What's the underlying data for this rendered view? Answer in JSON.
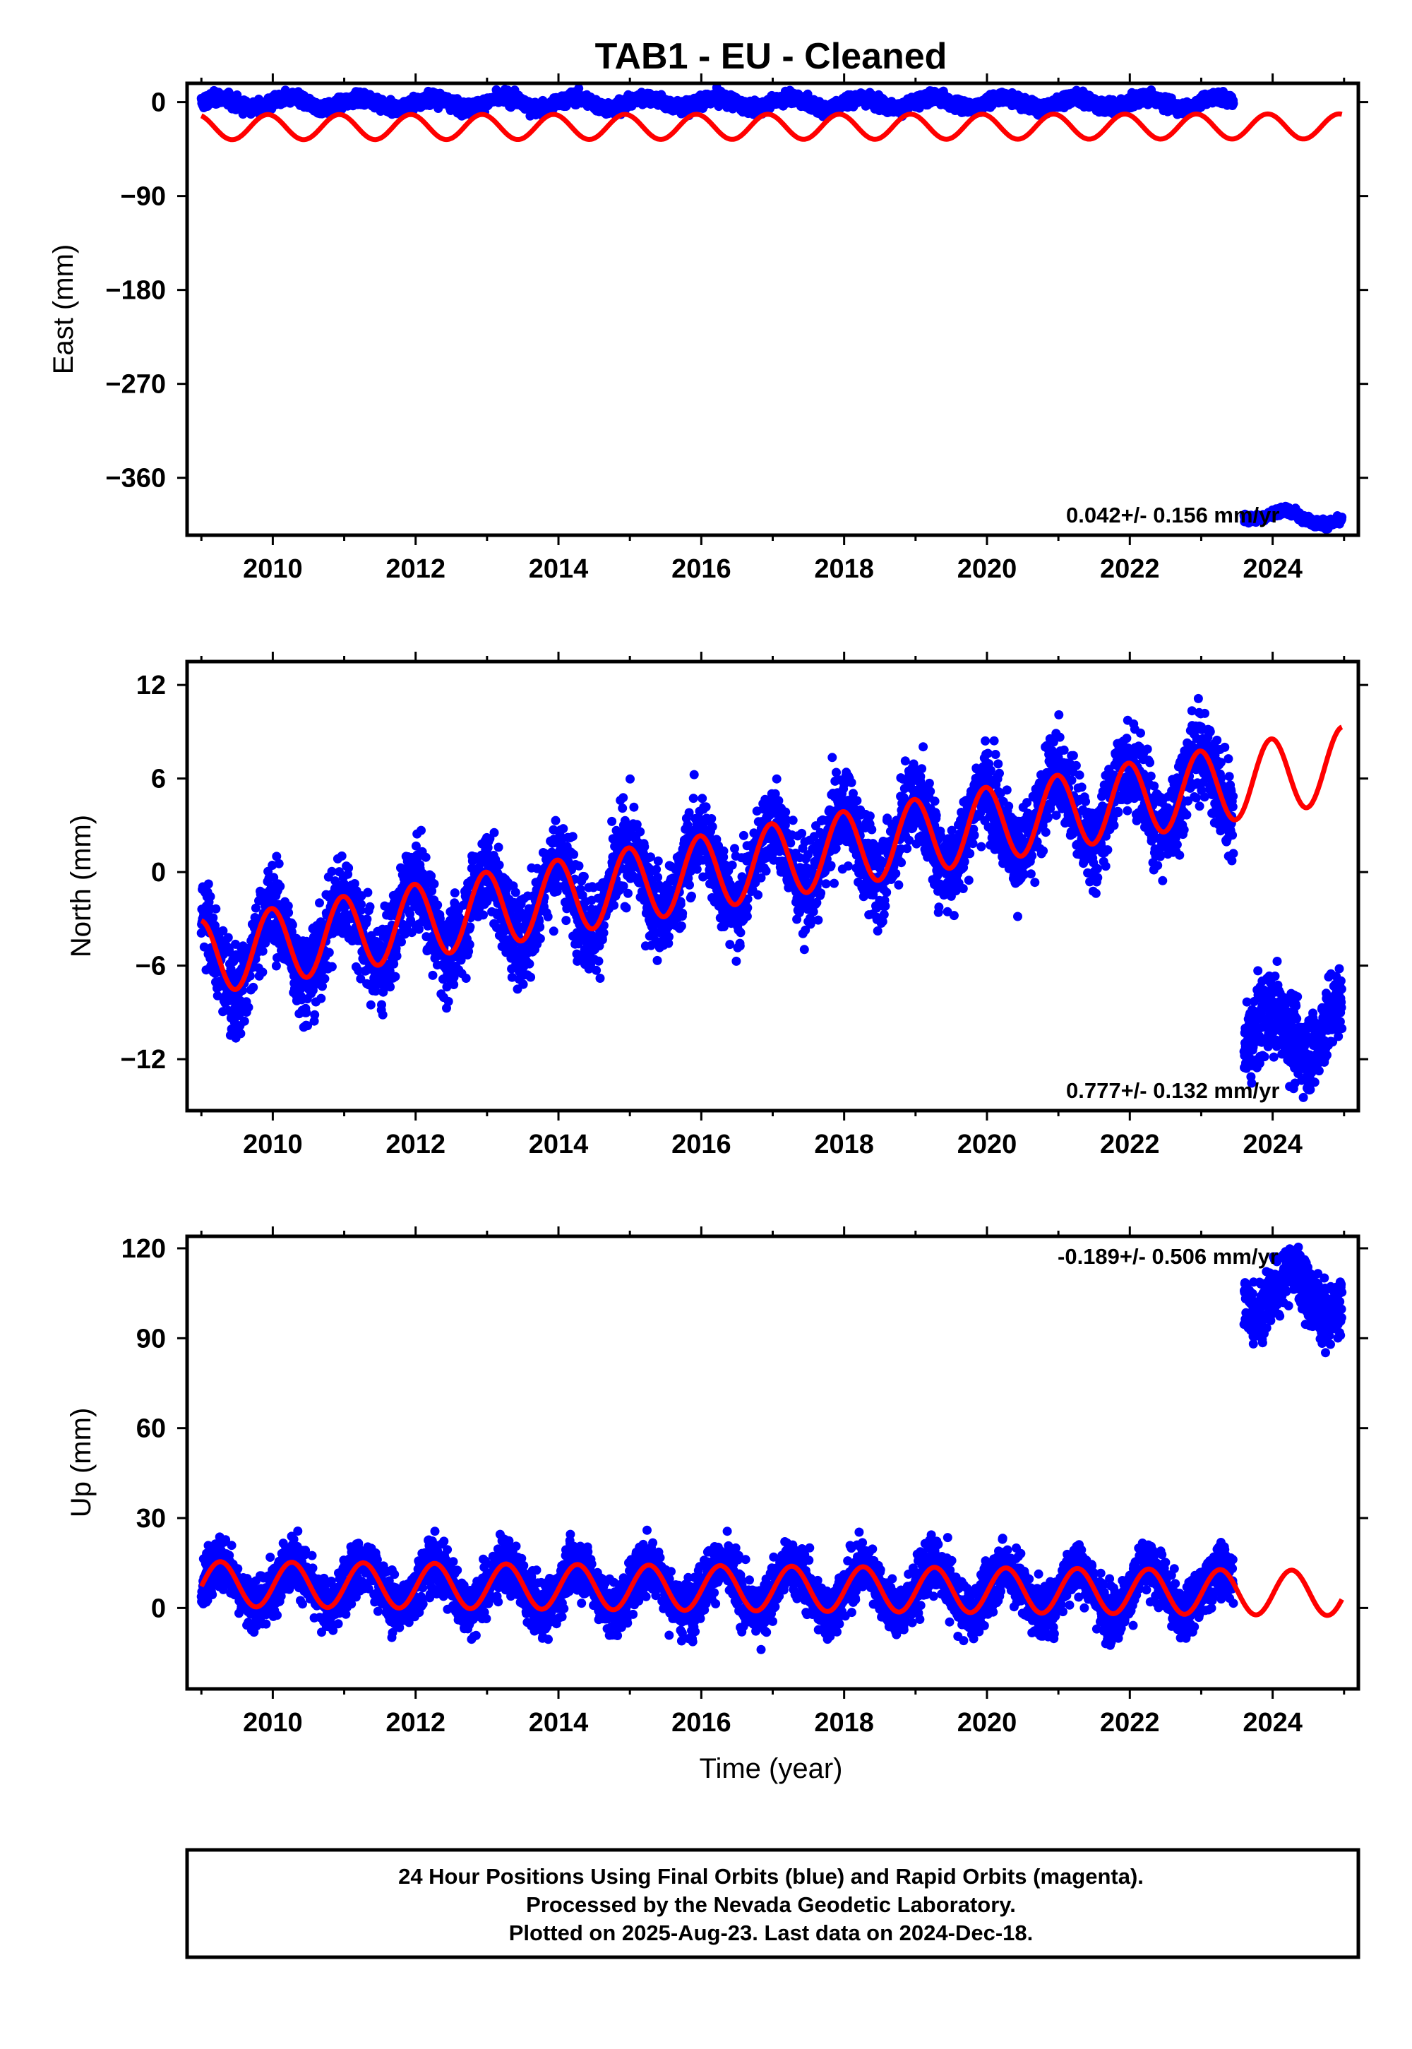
{
  "figure": {
    "title": "TAB1  - EU - Cleaned",
    "xlabel": "Time (year)",
    "footer": [
      "24 Hour Positions Using Final Orbits (blue) and Rapid Orbits (magenta).",
      "Processed by the Nevada Geodetic Laboratory.",
      "Plotted on 2025-Aug-23. Last data on 2024-Dec-18."
    ],
    "colors": {
      "data": "#0000ff",
      "model": "#ff0000",
      "frame": "#000000"
    }
  },
  "chart_data": [
    {
      "type": "scatter",
      "ylabel": "East (mm)",
      "rate": "0.042+/- 0.156 mm/yr",
      "xlim": [
        2008.8,
        2025.2
      ],
      "ylim": [
        -415,
        18
      ],
      "yticks": [
        0,
        -90,
        -180,
        -270,
        -360
      ],
      "xticks": [
        2010,
        2012,
        2014,
        2016,
        2018,
        2020,
        2022,
        2024
      ],
      "series": [
        {
          "kind": "data",
          "segments": [
            {
              "t0": 2009.0,
              "t1": 2023.45,
              "mean": -1,
              "trend": 0.04,
              "amp": 5,
              "phase": 0.1,
              "noise": 3
            },
            {
              "t0": 2023.6,
              "t1": 2024.97,
              "mean": -394,
              "trend": -5,
              "amp": 5,
              "phase": 0.4,
              "noise": 2
            }
          ]
        },
        {
          "kind": "model",
          "t0": 2009.0,
          "t1": 2024.97,
          "mean": -24,
          "trend": 0.042,
          "amp": 12,
          "phase": 2.0
        }
      ]
    },
    {
      "type": "scatter",
      "ylabel": "North (mm)",
      "rate": "0.777+/- 0.132 mm/yr",
      "xlim": [
        2008.8,
        2025.2
      ],
      "ylim": [
        -15.3,
        13.5
      ],
      "yticks": [
        12,
        6,
        0,
        -6,
        -12
      ],
      "xticks": [
        2010,
        2012,
        2014,
        2016,
        2018,
        2020,
        2022,
        2024
      ],
      "series": [
        {
          "kind": "data",
          "segments": [
            {
              "t0": 2009.0,
              "t1": 2023.45,
              "start": -5.5,
              "trend": 0.78,
              "amp": 2.4,
              "phase": 1.7,
              "noise": 1.4
            },
            {
              "t0": 2023.6,
              "t1": 2024.97,
              "start": -10.5,
              "trend": 0.5,
              "amp": 1.5,
              "phase": 1.7,
              "noise": 1.3
            }
          ]
        },
        {
          "kind": "model",
          "t0": 2009.0,
          "t1": 2024.97,
          "start": -5.5,
          "trend": 0.777,
          "amp": 2.4,
          "phase": 1.7
        }
      ]
    },
    {
      "type": "scatter",
      "ylabel": "Up (mm)",
      "rate": "-0.189+/- 0.506 mm/yr",
      "xlim": [
        2008.8,
        2025.2
      ],
      "ylim": [
        -27,
        124
      ],
      "yticks": [
        120,
        90,
        60,
        30,
        0
      ],
      "xticks": [
        2010,
        2012,
        2014,
        2016,
        2018,
        2020,
        2022,
        2024
      ],
      "series": [
        {
          "kind": "data",
          "segments": [
            {
              "t0": 2009.0,
              "t1": 2023.45,
              "start": 8,
              "trend": -0.19,
              "amp": 7.5,
              "phase": -0.1,
              "noise": 4.5
            },
            {
              "t0": 2023.6,
              "t1": 2024.97,
              "start": 106,
              "trend": -1,
              "amp": 7,
              "phase": -0.1,
              "noise": 5
            }
          ]
        },
        {
          "kind": "model",
          "t0": 2009.0,
          "t1": 2024.97,
          "start": 8,
          "trend": -0.189,
          "amp": 7.5,
          "phase": -0.1
        }
      ]
    }
  ]
}
